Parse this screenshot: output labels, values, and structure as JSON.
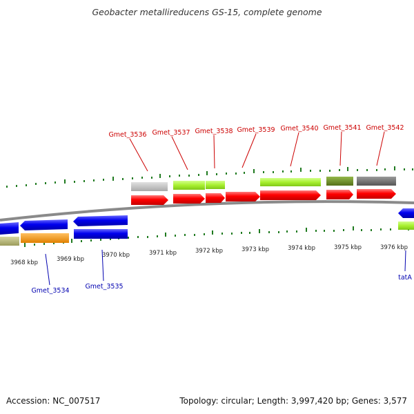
{
  "title": "Geobacter metallireducens GS-15, complete genome",
  "footer": {
    "accession": "Accession: NC_007517",
    "summary": "Topology: circular; Length: 3,997,420 bp; Genes: 3,577"
  },
  "kbp_labels": [
    "3968 kbp",
    "3969 kbp",
    "3970 kbp",
    "3971 kbp",
    "3972 kbp",
    "3973 kbp",
    "3974 kbp",
    "3975 kbp",
    "3976 kbp"
  ],
  "top_gene_labels": [
    "Gmet_3536",
    "Gmet_3537",
    "Gmet_3538",
    "Gmet_3539",
    "Gmet_3540",
    "Gmet_3541",
    "Gmet_3542"
  ],
  "bottom_gene_labels": [
    "Gmet_3534",
    "Gmet_3535",
    "tatA"
  ],
  "colors": {
    "cds_forward": "#ff0000",
    "cds_reverse": "#0000ee",
    "backbone": "#808080",
    "tick": "#1f7a1f",
    "label_top": "#cc0000",
    "label_bottom": "#0000b0",
    "cog_light_gray": "#c4c4c4",
    "cog_yellow_green": "#a8f030",
    "cog_olive": "#6b8e23",
    "cog_dark_gray": "#6e6e6e",
    "cog_orange": "#ff9900",
    "cog_khaki": "#b8b878"
  }
}
